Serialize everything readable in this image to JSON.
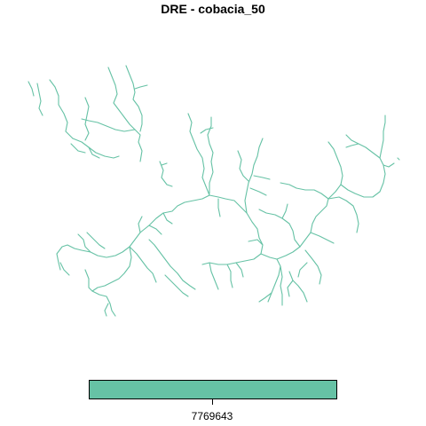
{
  "title": "DRE - cobacia_50",
  "colors": {
    "stream": "#66c2a5",
    "legend_fill": "#66c2a5",
    "border": "#000000",
    "background": "#ffffff"
  },
  "legend": {
    "type": "continuous-colorbar",
    "value_label": "7769643"
  }
}
